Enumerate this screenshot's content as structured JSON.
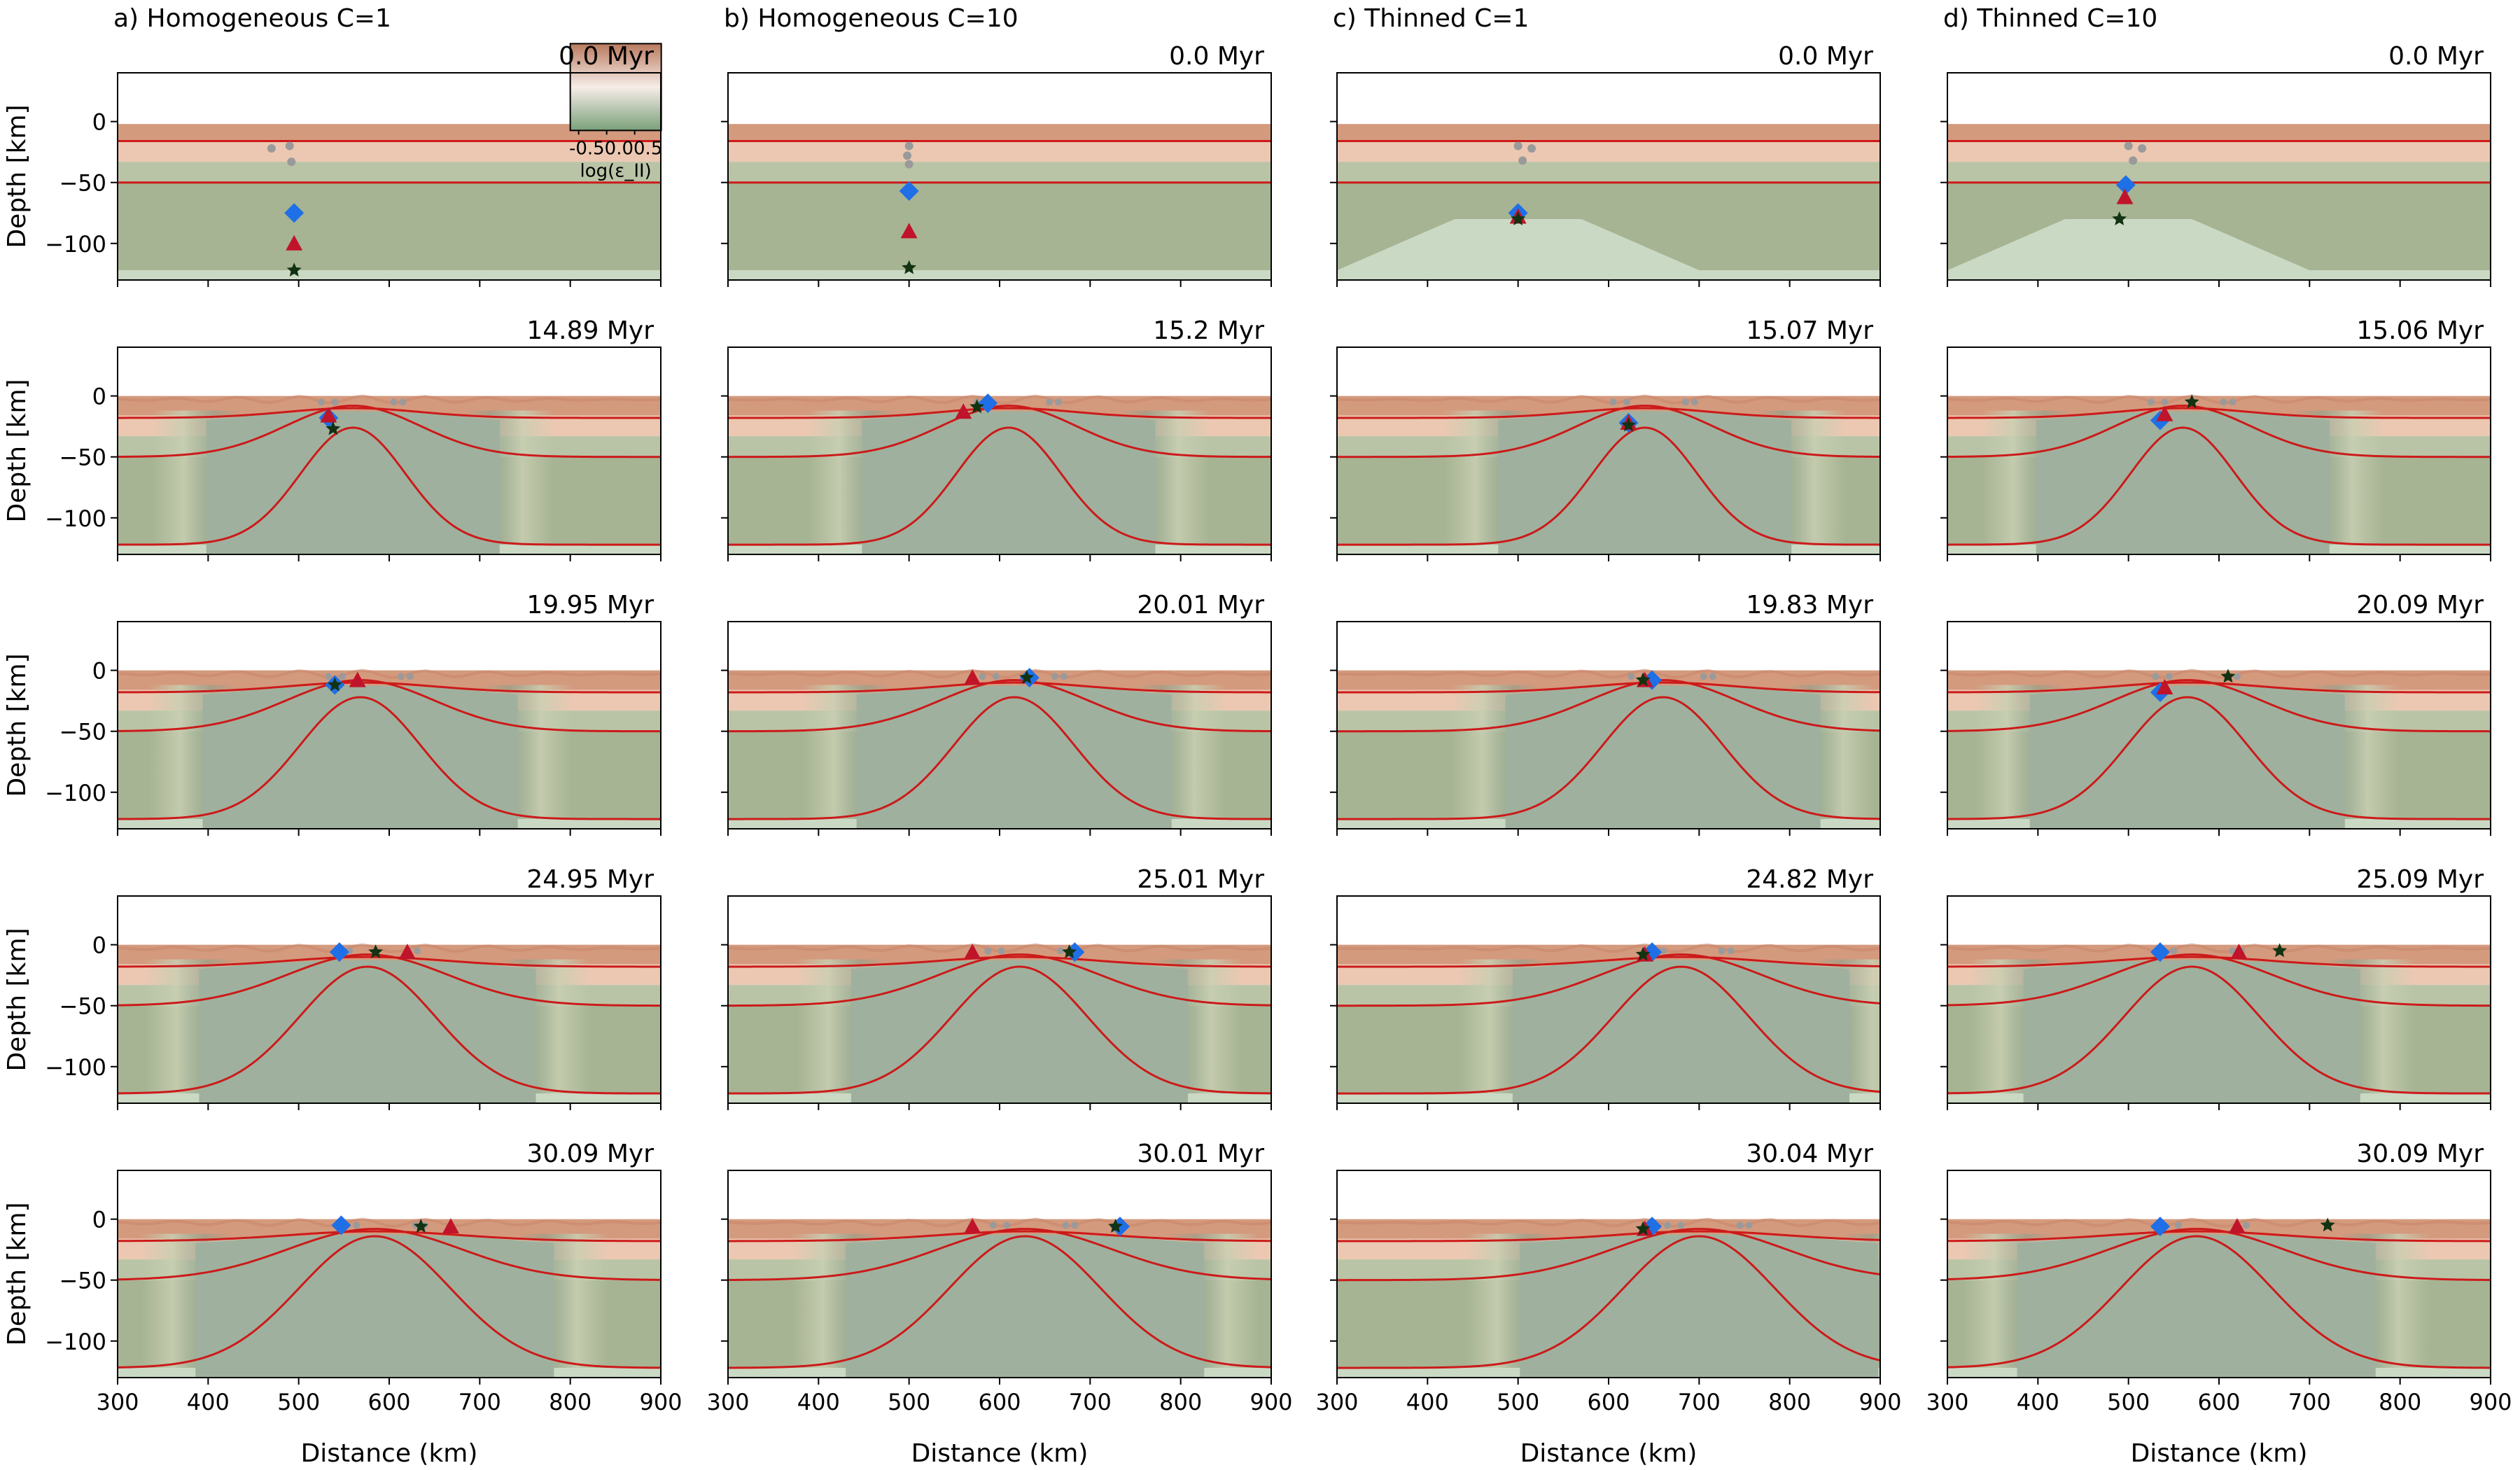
{
  "figure": {
    "xlabel": "Distance (km)",
    "ylabel": "Depth [km]",
    "x_ticks": [
      300,
      400,
      500,
      600,
      700,
      800,
      900
    ],
    "y_ticks": [
      0,
      -50,
      -100
    ],
    "xlim": [
      300,
      900
    ],
    "ylim": [
      -130,
      40
    ],
    "colorbar": {
      "label": "log(ε_II)",
      "ticks": [
        "-0.5",
        "0.0",
        "0.5"
      ],
      "colors": {
        "top": "#b97a5e",
        "mid": "#f6ede8",
        "bottom": "#7ba07a"
      }
    },
    "colors": {
      "upper_crust": "#d49a7e",
      "lower_crust": "#ecc8b2",
      "mantle": "#a6b493",
      "asthenosphere": "#9fb19e",
      "thinned_mantle": "#cad9c4",
      "isotherm": "#cc1a1a",
      "diamond": "#1f6fe6",
      "triangle": "#c0142a",
      "star": "#123312",
      "gray_markers": "#9a9a9a"
    }
  },
  "columns": [
    {
      "title": "a) Homogeneous C=1",
      "thinned": false,
      "times": [
        "0.0 Myr",
        "14.89 Myr",
        "19.95 Myr",
        "24.95 Myr",
        "30.09 Myr"
      ]
    },
    {
      "title": "b) Homogeneous C=10",
      "thinned": false,
      "times": [
        "0.0 Myr",
        "15.2 Myr",
        "20.01 Myr",
        "25.01 Myr",
        "30.01 Myr"
      ]
    },
    {
      "title": "c) Thinned C=1",
      "thinned": true,
      "times": [
        "0.0 Myr",
        "15.07 Myr",
        "19.83 Myr",
        "24.82 Myr",
        "30.04 Myr"
      ]
    },
    {
      "title": "d) Thinned C=10",
      "thinned": true,
      "times": [
        "0.0 Myr",
        "15.06 Myr",
        "20.09 Myr",
        "25.09 Myr",
        "30.09 Myr"
      ]
    }
  ],
  "chart_data": {
    "type": "scatter",
    "description_units": "x in km (Distance), y in km (Depth)",
    "markers": [
      [
        {
          "diamond": [
            495,
            -75
          ],
          "triangle": [
            495,
            -100
          ],
          "star": [
            495,
            -122
          ]
        },
        {
          "diamond": [
            533,
            -18
          ],
          "triangle": [
            533,
            -16
          ],
          "star": [
            538,
            -27
          ]
        },
        {
          "diamond": [
            540,
            -12
          ],
          "triangle": [
            565,
            -8
          ],
          "star": [
            540,
            -12
          ]
        },
        {
          "diamond": [
            545,
            -6
          ],
          "triangle": [
            620,
            -6
          ],
          "star": [
            585,
            -6
          ]
        },
        {
          "diamond": [
            547,
            -5
          ],
          "triangle": [
            668,
            -6
          ],
          "star": [
            635,
            -6
          ]
        }
      ],
      [
        {
          "diamond": [
            500,
            -57
          ],
          "triangle": [
            500,
            -90
          ],
          "star": [
            500,
            -120
          ]
        },
        {
          "diamond": [
            587,
            -6
          ],
          "triangle": [
            560,
            -13
          ],
          "star": [
            575,
            -9
          ]
        },
        {
          "diamond": [
            633,
            -6
          ],
          "triangle": [
            570,
            -6
          ],
          "star": [
            630,
            -6
          ]
        },
        {
          "diamond": [
            683,
            -6
          ],
          "triangle": [
            570,
            -6
          ],
          "star": [
            677,
            -6
          ]
        },
        {
          "diamond": [
            733,
            -6
          ],
          "triangle": [
            570,
            -6
          ],
          "star": [
            728,
            -6
          ]
        }
      ],
      [
        {
          "diamond": [
            500,
            -75
          ],
          "triangle": [
            500,
            -78
          ],
          "star": [
            500,
            -80
          ]
        },
        {
          "diamond": [
            622,
            -22
          ],
          "triangle": [
            622,
            -22
          ],
          "star": [
            622,
            -24
          ]
        },
        {
          "diamond": [
            648,
            -8
          ],
          "triangle": [
            640,
            -8
          ],
          "star": [
            638,
            -8
          ]
        },
        {
          "diamond": [
            648,
            -6
          ],
          "triangle": [
            640,
            -8
          ],
          "star": [
            638,
            -8
          ]
        },
        {
          "diamond": [
            648,
            -6
          ],
          "triangle": [
            640,
            -8
          ],
          "star": [
            638,
            -8
          ]
        }
      ],
      [
        {
          "diamond": [
            497,
            -52
          ],
          "triangle": [
            496,
            -62
          ],
          "star": [
            490,
            -80
          ]
        },
        {
          "diamond": [
            535,
            -20
          ],
          "triangle": [
            540,
            -15
          ],
          "star": [
            570,
            -5
          ]
        },
        {
          "diamond": [
            535,
            -18
          ],
          "triangle": [
            540,
            -14
          ],
          "star": [
            610,
            -5
          ]
        },
        {
          "diamond": [
            535,
            -6
          ],
          "triangle": [
            622,
            -6
          ],
          "star": [
            667,
            -5
          ]
        },
        {
          "diamond": [
            535,
            -6
          ],
          "triangle": [
            620,
            -6
          ],
          "star": [
            720,
            -5
          ]
        }
      ]
    ]
  }
}
